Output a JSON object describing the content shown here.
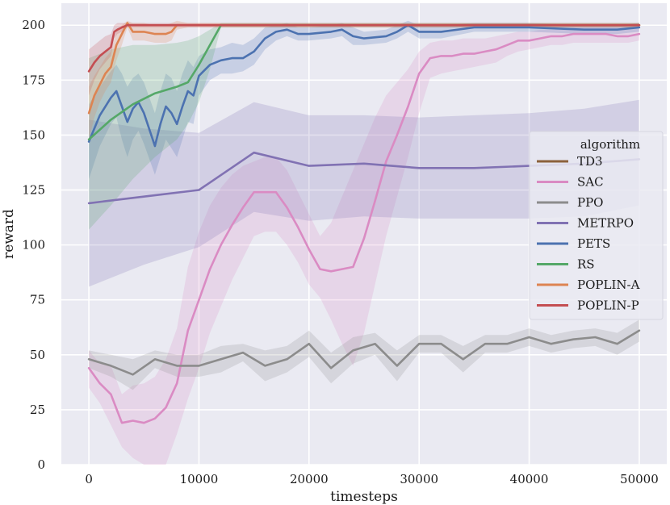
{
  "chart_data": {
    "type": "line",
    "title": "",
    "xlabel": "timesteps",
    "ylabel": "reward",
    "xlim": [
      -2500,
      52500
    ],
    "ylim": [
      0,
      210
    ],
    "xticks": [
      0,
      10000,
      20000,
      30000,
      40000,
      50000
    ],
    "yticks": [
      0,
      25,
      50,
      75,
      100,
      125,
      150,
      175,
      200
    ],
    "grid": true,
    "background_color": "#EAEAF2",
    "legend": {
      "title": "algorithm",
      "position": "center-right",
      "entries": [
        "TD3",
        "SAC",
        "PPO",
        "METRPO",
        "PETS",
        "RS",
        "POPLIN-A",
        "POPLIN-P"
      ]
    },
    "series": [
      {
        "name": "TD3",
        "color": "#8C613C",
        "x": [],
        "y": []
      },
      {
        "name": "SAC",
        "color": "#DA8BC3",
        "x": [
          0,
          1000,
          2000,
          3000,
          4000,
          5000,
          6000,
          7000,
          8000,
          9000,
          10000,
          11000,
          12000,
          13000,
          14000,
          15000,
          16000,
          17000,
          18000,
          19000,
          20000,
          21000,
          22000,
          23000,
          24000,
          25000,
          26000,
          27000,
          28000,
          29000,
          30000,
          31000,
          32000,
          33000,
          34000,
          35000,
          36000,
          37000,
          38000,
          39000,
          40000,
          41000,
          42000,
          43000,
          44000,
          45000,
          46000,
          47000,
          48000,
          49000,
          50000
        ],
        "y": [
          44,
          37,
          32,
          19,
          20,
          19,
          21,
          26,
          37,
          61,
          75,
          89,
          100,
          109,
          117,
          124,
          124,
          124,
          117,
          108,
          98,
          89,
          88,
          89,
          90,
          103,
          120,
          138,
          150,
          163,
          178,
          185,
          186,
          186,
          187,
          187,
          188,
          189,
          191,
          193,
          193,
          194,
          195,
          195,
          196,
          196,
          196,
          196,
          195,
          195,
          196
        ],
        "lower": [
          35,
          28,
          18,
          8,
          3,
          0,
          0,
          0,
          14,
          30,
          44,
          60,
          72,
          84,
          94,
          104,
          106,
          106,
          100,
          92,
          82,
          76,
          66,
          55,
          45,
          60,
          82,
          104,
          122,
          140,
          160,
          176,
          178,
          179,
          180,
          181,
          182,
          183,
          186,
          188,
          189,
          190,
          191,
          191,
          192,
          192,
          192,
          192,
          192,
          192,
          193
        ],
        "upper": [
          52,
          46,
          45,
          32,
          36,
          37,
          40,
          48,
          62,
          90,
          106,
          118,
          126,
          132,
          136,
          138,
          140,
          140,
          134,
          124,
          114,
          104,
          110,
          122,
          134,
          146,
          158,
          168,
          174,
          180,
          188,
          192,
          193,
          193,
          194,
          194,
          194,
          195,
          196,
          197,
          197,
          198,
          198,
          198,
          199,
          199,
          199,
          199,
          199,
          199,
          199
        ]
      },
      {
        "name": "PPO",
        "color": "#8C8C8C",
        "x": [
          0,
          2000,
          4000,
          6000,
          8000,
          10000,
          12000,
          14000,
          16000,
          18000,
          20000,
          22000,
          24000,
          26000,
          28000,
          30000,
          32000,
          34000,
          36000,
          38000,
          40000,
          42000,
          44000,
          46000,
          48000,
          50000
        ],
        "y": [
          48,
          45,
          41,
          48,
          45,
          45,
          48,
          51,
          45,
          48,
          55,
          44,
          52,
          55,
          45,
          55,
          55,
          48,
          55,
          55,
          58,
          55,
          57,
          58,
          55,
          61
        ],
        "lower": [
          44,
          40,
          34,
          44,
          40,
          40,
          42,
          47,
          38,
          42,
          49,
          37,
          46,
          50,
          38,
          51,
          51,
          42,
          51,
          51,
          54,
          51,
          53,
          54,
          50,
          56
        ],
        "upper": [
          52,
          50,
          48,
          52,
          50,
          50,
          54,
          55,
          52,
          54,
          61,
          51,
          58,
          60,
          52,
          59,
          59,
          54,
          59,
          59,
          62,
          59,
          61,
          62,
          60,
          66
        ]
      },
      {
        "name": "METRPO",
        "color": "#8172B3",
        "x": [
          0,
          5000,
          10000,
          15000,
          20000,
          25000,
          30000,
          35000,
          40000,
          45000,
          50000
        ],
        "y": [
          119,
          122,
          125,
          142,
          136,
          137,
          135,
          135,
          136,
          137,
          139
        ],
        "lower": [
          81,
          91,
          99,
          115,
          111,
          113,
          112,
          112,
          112,
          113,
          118
        ],
        "upper": [
          157,
          153,
          151,
          165,
          159,
          159,
          158,
          159,
          160,
          162,
          166
        ]
      },
      {
        "name": "PETS",
        "color": "#4C72B0",
        "x": [
          0,
          1000,
          2000,
          2500,
          3000,
          3500,
          4000,
          4500,
          5000,
          6000,
          6500,
          7000,
          7500,
          8000,
          8500,
          9000,
          9500,
          10000,
          11000,
          12000,
          13000,
          14000,
          15000,
          16000,
          17000,
          18000,
          19000,
          20000,
          22000,
          23000,
          24000,
          25000,
          27000,
          28000,
          29000,
          30000,
          32000,
          35000,
          40000,
          45000,
          48000,
          50000
        ],
        "y": [
          147,
          159,
          167,
          170,
          163,
          156,
          162,
          165,
          160,
          145,
          155,
          163,
          160,
          155,
          163,
          170,
          168,
          177,
          182,
          184,
          185,
          185,
          188,
          194,
          197,
          198,
          196,
          196,
          197,
          198,
          195,
          194,
          195,
          197,
          200,
          197,
          197,
          199,
          199,
          198,
          198,
          199
        ],
        "lower": [
          130,
          145,
          155,
          158,
          148,
          140,
          148,
          152,
          146,
          132,
          140,
          148,
          144,
          140,
          148,
          156,
          155,
          168,
          175,
          178,
          178,
          179,
          182,
          189,
          193,
          195,
          193,
          193,
          194,
          195,
          191,
          191,
          192,
          194,
          197,
          194,
          194,
          197,
          197,
          196,
          196,
          197
        ],
        "upper": [
          164,
          172,
          179,
          182,
          178,
          172,
          176,
          178,
          174,
          160,
          170,
          178,
          176,
          170,
          178,
          184,
          181,
          186,
          189,
          190,
          192,
          191,
          194,
          199,
          200,
          201,
          199,
          199,
          200,
          201,
          199,
          197,
          198,
          200,
          202,
          200,
          200,
          201,
          201,
          200,
          200,
          201
        ]
      },
      {
        "name": "RS",
        "color": "#55A868",
        "x": [
          0,
          2000,
          4000,
          6000,
          8000,
          9000,
          10000,
          11000,
          12000,
          14000,
          20000,
          30000,
          40000,
          50000
        ],
        "y": [
          148,
          157,
          164,
          169,
          172,
          174,
          182,
          191,
          200,
          200,
          200,
          200,
          200,
          200
        ],
        "lower": [
          107,
          118,
          130,
          140,
          148,
          155,
          165,
          180,
          199,
          199,
          199,
          199,
          199,
          199
        ],
        "upper": [
          185,
          189,
          191,
          191,
          192,
          193,
          195,
          198,
          201,
          201,
          201,
          201,
          201,
          201
        ]
      },
      {
        "name": "POPLIN-A",
        "color": "#DD8452",
        "x": [
          0,
          500,
          1000,
          1500,
          2000,
          2500,
          3000,
          3500,
          4000,
          5000,
          6000,
          7000,
          7500,
          8000,
          9000,
          10000,
          20000,
          30000,
          40000,
          50000
        ],
        "y": [
          160,
          168,
          173,
          178,
          181,
          191,
          196,
          201,
          197,
          197,
          196,
          196,
          197,
          200,
          200,
          200,
          200,
          200,
          200,
          200
        ],
        "lower": [
          148,
          158,
          165,
          170,
          174,
          184,
          191,
          199,
          193,
          193,
          192,
          192,
          193,
          198,
          199,
          199,
          199,
          199,
          199,
          199
        ],
        "upper": [
          172,
          177,
          181,
          185,
          188,
          197,
          200,
          202,
          201,
          201,
          200,
          200,
          201,
          202,
          201,
          201,
          201,
          201,
          201,
          201
        ]
      },
      {
        "name": "POPLIN-P",
        "color": "#C44E52",
        "x": [
          0,
          500,
          1000,
          1500,
          2000,
          2300,
          2600,
          3000,
          3500,
          4000,
          5000,
          10000,
          20000,
          30000,
          40000,
          50000
        ],
        "y": [
          179,
          183,
          186,
          188,
          190,
          197,
          198,
          199,
          200,
          200,
          200,
          200,
          200,
          200,
          200,
          200
        ],
        "lower": [
          168,
          175,
          180,
          183,
          186,
          194,
          196,
          197,
          199,
          199,
          199,
          199,
          199,
          199,
          199,
          199
        ],
        "upper": [
          189,
          191,
          193,
          195,
          196,
          200,
          201,
          201,
          201,
          201,
          201,
          201,
          201,
          201,
          201,
          201
        ]
      }
    ]
  }
}
